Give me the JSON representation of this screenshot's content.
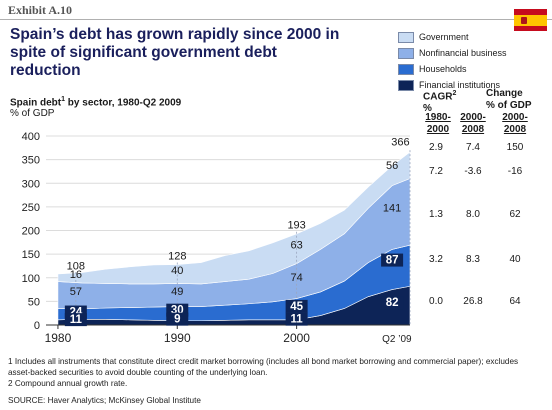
{
  "exhibit": "Exhibit A.10",
  "title": "Spain’s debt has grown rapidly since 2000 in spite of significant government debt reduction",
  "subtitle": "Spain debt",
  "subtitle_footnote": "1",
  "subtitle_rest": " by sector, 1980-Q2 2009",
  "unit": "% of GDP",
  "end_label": "Q2 ’09",
  "colors": {
    "government": "#c9dcf3",
    "nonfinancial": "#8eb0e8",
    "households": "#2a6cd0",
    "financial": "#0d2457",
    "title": "#1a1f5c"
  },
  "chart_data": {
    "type": "area",
    "stacked": true,
    "xlim": [
      1979,
      2009.5
    ],
    "ylim": [
      0,
      400
    ],
    "yticks": [
      0,
      50,
      100,
      150,
      200,
      250,
      300,
      350,
      400
    ],
    "xticks": [
      1980,
      1990,
      2000
    ],
    "x": [
      1980,
      1982,
      1984,
      1986,
      1988,
      1990,
      1992,
      1994,
      1996,
      1998,
      2000,
      2002,
      2004,
      2006,
      2008,
      2009.5
    ],
    "series": [
      {
        "name": "Financial institutions",
        "values": [
          11,
          12,
          12,
          11,
          10,
          9,
          9,
          10,
          11,
          11,
          11,
          20,
          35,
          60,
          75,
          82
        ]
      },
      {
        "name": "Households",
        "values": [
          24,
          22,
          24,
          26,
          28,
          30,
          30,
          32,
          34,
          38,
          45,
          50,
          58,
          72,
          85,
          87
        ]
      },
      {
        "name": "Nonfinancial business",
        "values": [
          57,
          55,
          52,
          50,
          49,
          49,
          48,
          50,
          52,
          60,
          74,
          90,
          100,
          115,
          135,
          141
        ]
      },
      {
        "name": "Government",
        "values": [
          16,
          22,
          30,
          36,
          40,
          40,
          45,
          55,
          60,
          65,
          63,
          55,
          50,
          45,
          42,
          56
        ]
      }
    ],
    "totals": [
      {
        "x": 1980,
        "value": 108
      },
      {
        "x": 1990,
        "value": 128
      },
      {
        "x": 2000,
        "value": 193
      },
      {
        "x": 2009.5,
        "value": 366
      }
    ],
    "data_labels": [
      {
        "text": "108",
        "x": 1981.5,
        "y": 117
      },
      {
        "text": "16",
        "x": 1981.5,
        "y": 100
      },
      {
        "text": "57",
        "x": 1981.5,
        "y": 63
      },
      {
        "text": "24",
        "x": 1981.5,
        "y": 20,
        "light": true
      },
      {
        "text": "11",
        "x": 1981.5,
        "y": 4,
        "light": true
      },
      {
        "text": "128",
        "x": 1990,
        "y": 139
      },
      {
        "text": "40",
        "x": 1990,
        "y": 108
      },
      {
        "text": "49",
        "x": 1990,
        "y": 63
      },
      {
        "text": "30",
        "x": 1990,
        "y": 24,
        "light": true
      },
      {
        "text": "9",
        "x": 1990,
        "y": 5,
        "light": true
      },
      {
        "text": "193",
        "x": 2000,
        "y": 204
      },
      {
        "text": "63",
        "x": 2000,
        "y": 162
      },
      {
        "text": "74",
        "x": 2000,
        "y": 93
      },
      {
        "text": "45",
        "x": 2000,
        "y": 32,
        "light": true
      },
      {
        "text": "11",
        "x": 2000,
        "y": 5,
        "light": true
      },
      {
        "text": "366",
        "x": 2008.7,
        "y": 380
      },
      {
        "text": "56",
        "x": 2008.0,
        "y": 330
      },
      {
        "text": "141",
        "x": 2008.0,
        "y": 240
      },
      {
        "text": "87",
        "x": 2008.0,
        "y": 130,
        "light": true
      },
      {
        "text": "82",
        "x": 2008.0,
        "y": 40,
        "light": true
      }
    ]
  },
  "legend": [
    {
      "label": "Government",
      "key": "government"
    },
    {
      "label": "Nonfinancial business",
      "key": "nonfinancial"
    },
    {
      "label": "Households",
      "key": "households"
    },
    {
      "label": "Financial institutions",
      "key": "financial"
    }
  ],
  "table": {
    "cagr_label": "CAGR",
    "cagr_footnote": "2",
    "cagr_unit": "%",
    "change_label": "Change",
    "change_unit": "% of GDP",
    "col1": "1980-2000",
    "col2": "2000-2008",
    "col3": "2000-2008",
    "rows": [
      {
        "c1": "2.9",
        "c2": "7.4",
        "c3": "150"
      },
      {
        "c1": "7.2",
        "c2": "-3.6",
        "c3": "-16"
      },
      {
        "c1": "1.3",
        "c2": "8.0",
        "c3": "62"
      },
      {
        "c1": "3.2",
        "c2": "8.3",
        "c3": "40"
      },
      {
        "c1": "0.0",
        "c2": "26.8",
        "c3": "64"
      }
    ]
  },
  "footnotes": [
    "1 Includes all instruments that constitute direct credit market borrowing (includes all bond market borrowing and commercial paper); excludes asset-backed securities to avoid double counting of the underlying loan.",
    "2 Compound annual growth rate."
  ],
  "source": "SOURCE: Haver Analytics; McKinsey Global Institute"
}
